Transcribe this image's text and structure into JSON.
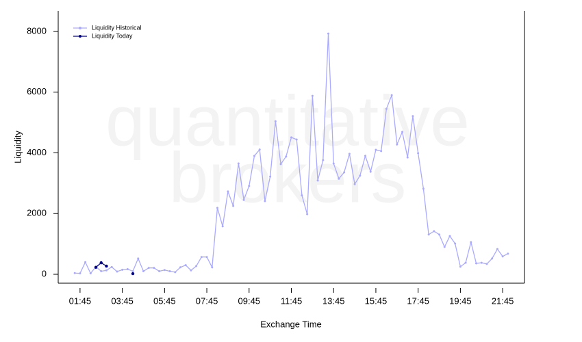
{
  "chart_data": {
    "type": "line",
    "watermark": [
      "quantitative",
      "brokers"
    ],
    "xlabel": "Exchange Time",
    "ylabel": "Liquidity",
    "legend": "top-left",
    "x": [
      "01:30",
      "01:45",
      "02:00",
      "02:15",
      "02:30",
      "02:45",
      "03:00",
      "03:15",
      "03:30",
      "03:45",
      "04:00",
      "04:15",
      "04:30",
      "04:45",
      "05:00",
      "05:15",
      "05:30",
      "05:45",
      "06:00",
      "06:15",
      "06:30",
      "06:45",
      "07:00",
      "07:15",
      "07:30",
      "07:45",
      "08:00",
      "08:15",
      "08:30",
      "08:45",
      "09:00",
      "09:15",
      "09:30",
      "09:45",
      "10:00",
      "10:15",
      "10:30",
      "10:45",
      "11:00",
      "11:15",
      "11:30",
      "11:45",
      "12:00",
      "12:15",
      "12:30",
      "12:45",
      "13:00",
      "13:15",
      "13:30",
      "13:45",
      "14:00",
      "14:15",
      "14:30",
      "14:45",
      "15:00",
      "15:15",
      "15:30",
      "15:45",
      "16:00",
      "16:15",
      "16:30",
      "16:45",
      "17:00",
      "17:15",
      "17:30",
      "17:45",
      "18:00",
      "18:15",
      "18:30",
      "18:45",
      "19:00",
      "19:15",
      "19:30",
      "19:45",
      "20:00",
      "20:15",
      "20:30",
      "20:45",
      "21:00",
      "21:15",
      "21:30",
      "21:45",
      "22:00"
    ],
    "series": [
      {
        "name": "Liquidity Historical",
        "color": "#aaaaff",
        "values": [
          40,
          30,
          400,
          30,
          250,
          100,
          130,
          240,
          90,
          150,
          170,
          100,
          520,
          100,
          210,
          210,
          100,
          140,
          100,
          70,
          230,
          300,
          130,
          270,
          570,
          570,
          230,
          2190,
          1580,
          2730,
          2250,
          3650,
          2450,
          2910,
          3900,
          4110,
          2410,
          3220,
          5040,
          3630,
          3880,
          4510,
          4440,
          2600,
          1980,
          5880,
          3090,
          3760,
          7930,
          3650,
          3150,
          3360,
          3970,
          2970,
          3250,
          3900,
          3380,
          4100,
          4060,
          5450,
          5900,
          4280,
          4690,
          3850,
          5210,
          3990,
          2820,
          1310,
          1420,
          1310,
          900,
          1260,
          1010,
          250,
          380,
          1060,
          360,
          380,
          340,
          520,
          830,
          590,
          680
        ]
      },
      {
        "name": "Liquidity Today",
        "color": "#00008b",
        "values": [
          null,
          null,
          null,
          null,
          230,
          380,
          270,
          null,
          null,
          null,
          null,
          20,
          null,
          null,
          null,
          null,
          null,
          null,
          null,
          null,
          null,
          null,
          null,
          null,
          null,
          null,
          null,
          null,
          null,
          null,
          null,
          null,
          null,
          null,
          null,
          null,
          null,
          null,
          null,
          null,
          null,
          null,
          null,
          null,
          null,
          null,
          null,
          null,
          null,
          null,
          null,
          null,
          null,
          null,
          null,
          null,
          null,
          null,
          null,
          null,
          null,
          null,
          null,
          null,
          null,
          null,
          null,
          null,
          null,
          null,
          null,
          null,
          null,
          null,
          null,
          null,
          null,
          null,
          null,
          null,
          null,
          null,
          null
        ]
      }
    ],
    "xlim": [
      "00:43",
      "22:47"
    ],
    "xticks": [
      "01:45",
      "03:45",
      "05:45",
      "07:45",
      "09:45",
      "11:45",
      "13:45",
      "15:45",
      "17:45",
      "19:45",
      "21:45"
    ],
    "ylim": [
      -293,
      8676
    ],
    "yticks": [
      0,
      2000,
      4000,
      6000,
      8000
    ]
  }
}
